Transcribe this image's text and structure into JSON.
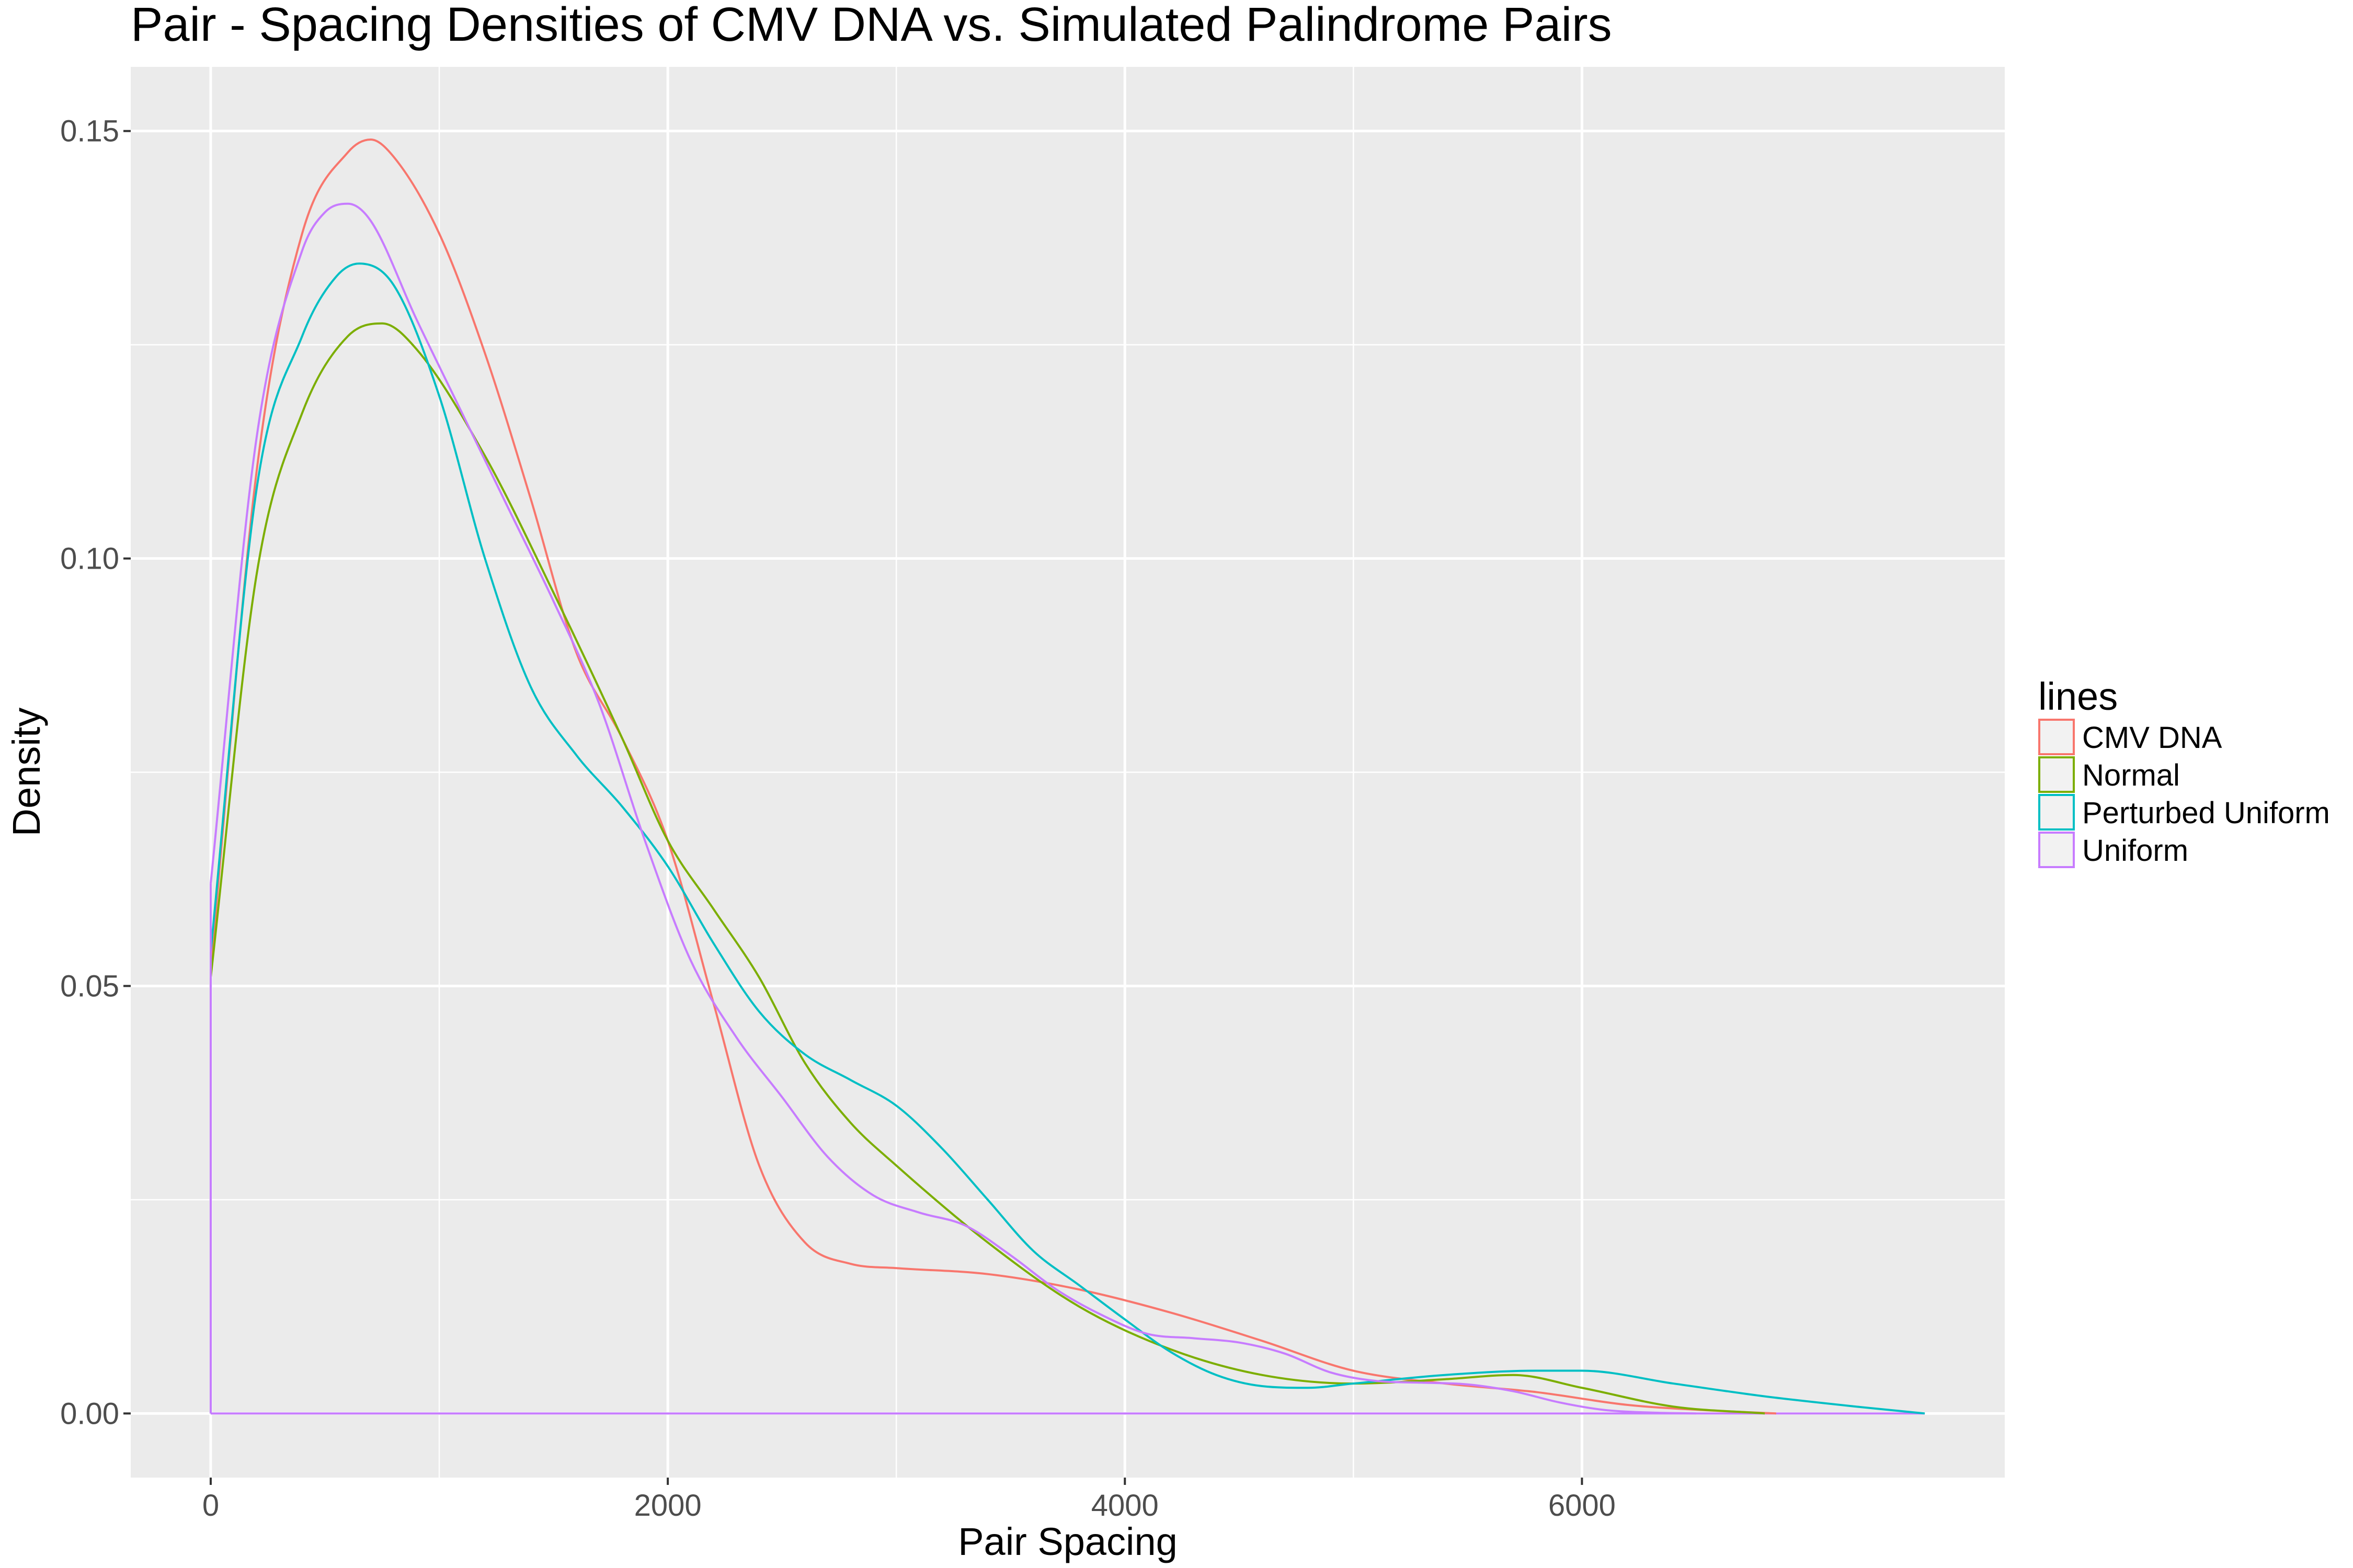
{
  "chart_data": {
    "type": "line",
    "title": "Pair - Spacing Densities of CMV DNA vs. Simulated Palindrome Pairs",
    "xlabel": "Pair Spacing",
    "ylabel": "Density",
    "xlim": [
      -350,
      7850
    ],
    "ylim": [
      -0.0075,
      0.1575
    ],
    "xticks": [
      0,
      2000,
      4000,
      6000
    ],
    "xtick_labels": [
      "0",
      "2000",
      "4000",
      "6000"
    ],
    "yticks": [
      0.0,
      0.05,
      0.1,
      0.15
    ],
    "ytick_labels": [
      "0.00",
      "0.05",
      "0.10",
      "0.15"
    ],
    "grid": true,
    "legend": {
      "title": "lines",
      "placement": "right"
    },
    "series": [
      {
        "name": "CMV DNA",
        "color": "#F8766D",
        "x": [
          0,
          200,
          400,
          600,
          700,
          800,
          1000,
          1200,
          1400,
          1600,
          1800,
          2000,
          2200,
          2400,
          2600,
          2800,
          3000,
          3400,
          3800,
          4200,
          4600,
          5000,
          5400,
          5800,
          6200,
          6600,
          6850
        ],
        "y": [
          0.052,
          0.11,
          0.138,
          0.1475,
          0.149,
          0.147,
          0.138,
          0.124,
          0.107,
          0.089,
          0.079,
          0.067,
          0.048,
          0.029,
          0.02,
          0.0175,
          0.017,
          0.0163,
          0.0145,
          0.0118,
          0.0085,
          0.005,
          0.0035,
          0.0025,
          0.001,
          0.0003,
          0.0
        ]
      },
      {
        "name": "Normal",
        "color": "#7CAE00",
        "x": [
          0,
          200,
          400,
          600,
          750,
          900,
          1200,
          1500,
          1800,
          2000,
          2200,
          2400,
          2600,
          2800,
          3000,
          3400,
          3800,
          4200,
          4600,
          5000,
          5400,
          5700,
          6000,
          6400,
          6800
        ],
        "y": [
          0.051,
          0.098,
          0.117,
          0.126,
          0.1275,
          0.1245,
          0.112,
          0.096,
          0.079,
          0.067,
          0.059,
          0.051,
          0.041,
          0.034,
          0.029,
          0.02,
          0.0125,
          0.0075,
          0.0045,
          0.0035,
          0.004,
          0.0045,
          0.003,
          0.0008,
          0.0
        ]
      },
      {
        "name": "Perturbed Uniform",
        "color": "#00BFC4",
        "x": [
          0,
          200,
          400,
          550,
          650,
          800,
          1000,
          1200,
          1400,
          1600,
          1800,
          2000,
          2200,
          2400,
          2600,
          2800,
          3000,
          3200,
          3400,
          3600,
          3800,
          4000,
          4200,
          4400,
          4600,
          4800,
          5000,
          5400,
          5800,
          6000,
          6400,
          6800,
          7200,
          7500
        ],
        "y": [
          0.054,
          0.108,
          0.126,
          0.133,
          0.1345,
          0.132,
          0.119,
          0.1,
          0.085,
          0.077,
          0.071,
          0.064,
          0.055,
          0.047,
          0.042,
          0.039,
          0.036,
          0.031,
          0.025,
          0.019,
          0.015,
          0.011,
          0.0072,
          0.0045,
          0.0032,
          0.003,
          0.0035,
          0.0045,
          0.005,
          0.005,
          0.0035,
          0.002,
          0.0008,
          0.0
        ]
      },
      {
        "name": "Uniform",
        "color": "#C77CFF",
        "x": [
          0,
          200,
          400,
          500,
          600,
          700,
          900,
          1100,
          1300,
          1500,
          1700,
          1900,
          2100,
          2300,
          2500,
          2700,
          2900,
          3100,
          3300,
          3500,
          3700,
          3900,
          4100,
          4300,
          4500,
          4700,
          4900,
          5100,
          5300,
          5500,
          5700,
          5900,
          6100,
          6300,
          6500
        ],
        "y": [
          0.062,
          0.114,
          0.136,
          0.1405,
          0.1415,
          0.1395,
          0.128,
          0.117,
          0.106,
          0.095,
          0.083,
          0.067,
          0.053,
          0.044,
          0.037,
          0.03,
          0.0255,
          0.0235,
          0.022,
          0.0185,
          0.0145,
          0.0115,
          0.0093,
          0.0088,
          0.0083,
          0.007,
          0.0048,
          0.0038,
          0.0036,
          0.0034,
          0.0026,
          0.0013,
          0.0004,
          0.0001,
          0.0
        ]
      }
    ],
    "baseline": {
      "xmin": 0,
      "xmax": 7500,
      "y": 0.0,
      "color": "#C77CFF"
    }
  }
}
